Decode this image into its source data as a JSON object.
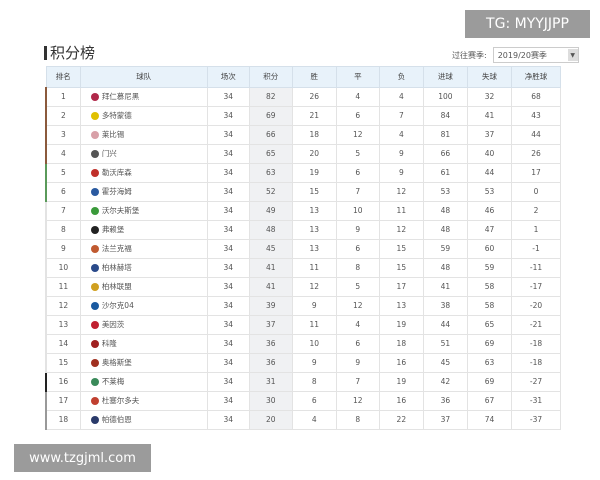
{
  "watermark_top": "TG: MYYJJPP",
  "watermark_bottom": "www.tzgjml.com",
  "title": "积分榜",
  "season_label": "过往赛季:",
  "season_value": "2019/20赛季",
  "headers": [
    "排名",
    "球队",
    "场次",
    "积分",
    "胜",
    "平",
    "负",
    "进球",
    "失球",
    "净胜球"
  ],
  "rows": [
    [
      "1",
      "拜仁慕尼黑",
      "34",
      "82",
      "26",
      "4",
      "4",
      "100",
      "32",
      "68",
      "#8b5a3c",
      "#b0284a"
    ],
    [
      "2",
      "多特蒙德",
      "34",
      "69",
      "21",
      "6",
      "7",
      "84",
      "41",
      "43",
      "#8b5a3c",
      "#e0c000"
    ],
    [
      "3",
      "莱比锡",
      "34",
      "66",
      "18",
      "12",
      "4",
      "81",
      "37",
      "44",
      "#8b5a3c",
      "#d8a0a8"
    ],
    [
      "4",
      "门兴",
      "34",
      "65",
      "20",
      "5",
      "9",
      "66",
      "40",
      "26",
      "#8b5a3c",
      "#555555"
    ],
    [
      "5",
      "勒沃库森",
      "34",
      "63",
      "19",
      "6",
      "9",
      "61",
      "44",
      "17",
      "#5a9a5a",
      "#c0302a"
    ],
    [
      "6",
      "霍芬海姆",
      "34",
      "52",
      "15",
      "7",
      "12",
      "53",
      "53",
      "0",
      "#5a9a5a",
      "#2a5aa0"
    ],
    [
      "7",
      "沃尔夫斯堡",
      "34",
      "49",
      "13",
      "10",
      "11",
      "48",
      "46",
      "2",
      "",
      "#3a9a3a"
    ],
    [
      "8",
      "弗赖堡",
      "34",
      "48",
      "13",
      "9",
      "12",
      "48",
      "47",
      "1",
      "",
      "#222222"
    ],
    [
      "9",
      "法兰克福",
      "34",
      "45",
      "13",
      "6",
      "15",
      "59",
      "60",
      "-1",
      "",
      "#c05a30"
    ],
    [
      "10",
      "柏林赫塔",
      "34",
      "41",
      "11",
      "8",
      "15",
      "48",
      "59",
      "-11",
      "",
      "#2a4a8a"
    ],
    [
      "11",
      "柏林联盟",
      "34",
      "41",
      "12",
      "5",
      "17",
      "41",
      "58",
      "-17",
      "",
      "#d0a020"
    ],
    [
      "12",
      "沙尔克04",
      "34",
      "39",
      "9",
      "12",
      "13",
      "38",
      "58",
      "-20",
      "",
      "#1a5aa0"
    ],
    [
      "13",
      "美因茨",
      "34",
      "37",
      "11",
      "4",
      "19",
      "44",
      "65",
      "-21",
      "",
      "#c02030"
    ],
    [
      "14",
      "科隆",
      "34",
      "36",
      "10",
      "6",
      "18",
      "51",
      "69",
      "-18",
      "",
      "#a02020"
    ],
    [
      "15",
      "奥格斯堡",
      "34",
      "36",
      "9",
      "9",
      "16",
      "45",
      "63",
      "-18",
      "",
      "#a03020"
    ],
    [
      "16",
      "不莱梅",
      "34",
      "31",
      "8",
      "7",
      "19",
      "42",
      "69",
      "-27",
      "#222222",
      "#3a8a5a"
    ],
    [
      "17",
      "杜塞尔多夫",
      "34",
      "30",
      "6",
      "12",
      "16",
      "36",
      "67",
      "-31",
      "#999999",
      "#c04030"
    ],
    [
      "18",
      "帕德伯恩",
      "34",
      "20",
      "4",
      "8",
      "22",
      "37",
      "74",
      "-37",
      "#999999",
      "#2a3a6a"
    ]
  ]
}
